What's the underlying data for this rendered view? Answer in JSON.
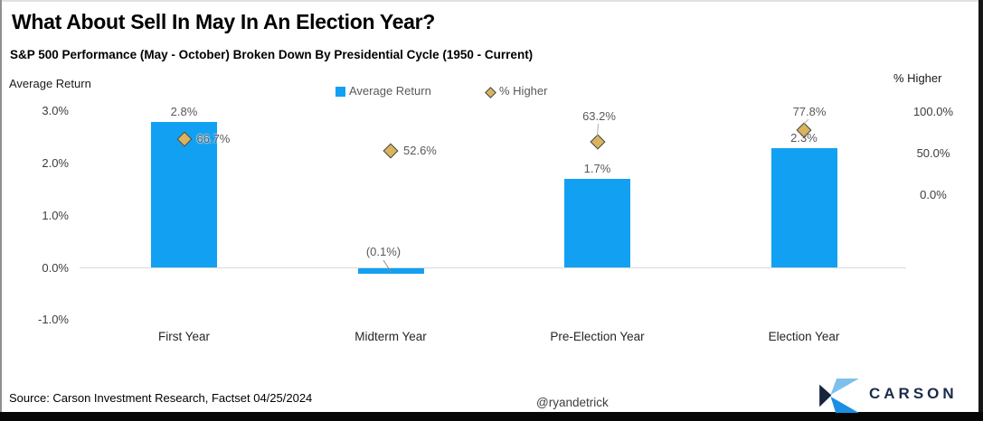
{
  "header": {
    "title": "What About Sell In May In An Election Year?",
    "subtitle": "S&P 500 Performance (May - October) Broken Down By Presidential Cycle (1950 - Current)"
  },
  "axes": {
    "left_title": "Average Return",
    "right_title": "% Higher"
  },
  "legend": {
    "avg_return": "Average Return",
    "pct_higher": "% Higher"
  },
  "footer": {
    "source": "Source: Carson Investment Research, Factset 04/25/2024",
    "handle": "@ryandetrick",
    "brand": "CARSON"
  },
  "colors": {
    "bar_blue": "#12a0f2",
    "diamond_gold": "#d9b45c",
    "diamond_outline": "#3f4450",
    "label_gray": "#595959",
    "zero_line": "#d9d9d9",
    "brand_navy": "#1b2b4a",
    "logo_light_blue": "#7ec0ec",
    "logo_bright_blue": "#1b8fe3",
    "logo_navy": "#16243e"
  },
  "chart_data": {
    "type": "bar",
    "title": "What About Sell In May In An Election Year?",
    "subtitle": "S&P 500 Performance (May - October) Broken Down By Presidential Cycle (1950 - Current)",
    "categories": [
      "First Year",
      "Midterm Year",
      "Pre-Election Year",
      "Election Year"
    ],
    "series": [
      {
        "name": "Average Return",
        "axis": "left",
        "type": "bar",
        "values": [
          2.8,
          -0.1,
          1.7,
          2.3
        ],
        "labels": [
          "2.8%",
          "(0.1%)",
          "1.7%",
          "2.3%"
        ]
      },
      {
        "name": "% Higher",
        "axis": "right",
        "type": "scatter-diamond",
        "values": [
          66.7,
          52.6,
          63.2,
          77.8
        ],
        "labels": [
          "66.7%",
          "52.6%",
          "63.2%",
          "77.8%"
        ]
      }
    ],
    "left_axis": {
      "title": "Average Return",
      "tick_labels": [
        "3.0%",
        "2.0%",
        "1.0%",
        "0.0%",
        "-1.0%"
      ],
      "tick_values": [
        3.0,
        2.0,
        1.0,
        0.0,
        -1.0
      ],
      "range": [
        -1.5,
        3.2
      ]
    },
    "right_axis": {
      "title": "% Higher",
      "tick_labels": [
        "100.0%",
        "50.0%",
        "0.0%"
      ],
      "tick_values": [
        100,
        50,
        0
      ]
    },
    "grid": "zero-line-only",
    "legend_position": "top-center"
  }
}
